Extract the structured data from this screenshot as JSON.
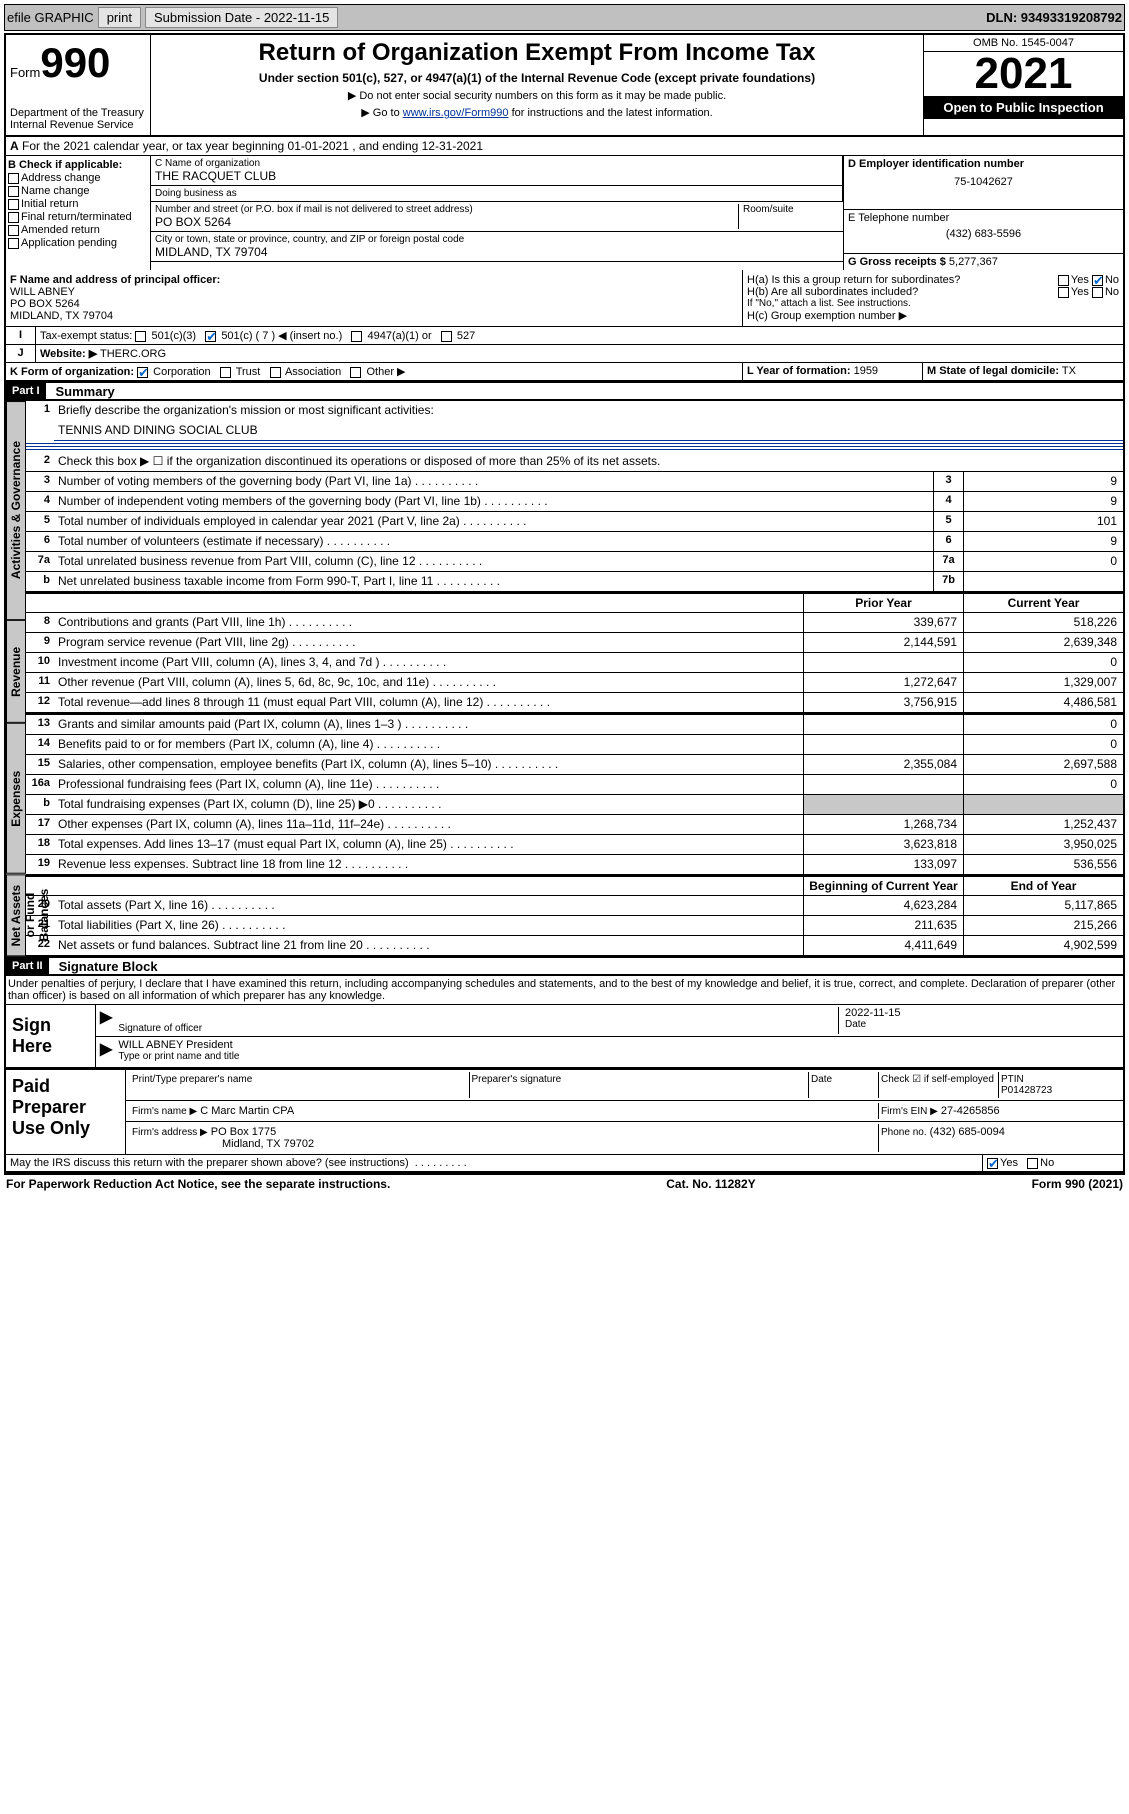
{
  "topbar": {
    "efile": "efile GRAPHIC",
    "print": "print",
    "subdate_label": "Submission Date - 2022-11-15",
    "dln": "DLN: 93493319208792"
  },
  "header": {
    "form": "Form",
    "formno": "990",
    "dept": "Department of the Treasury",
    "irs": "Internal Revenue Service",
    "title": "Return of Organization Exempt From Income Tax",
    "sub": "Under section 501(c), 527, or 4947(a)(1) of the Internal Revenue Code (except private foundations)",
    "warn": "▶ Do not enter social security numbers on this form as it may be made public.",
    "goto_pre": "▶ Go to ",
    "goto_link": "www.irs.gov/Form990",
    "goto_post": " for instructions and the latest information.",
    "omb": "OMB No. 1545-0047",
    "year": "2021",
    "open": "Open to Public Inspection"
  },
  "A": "For the 2021 calendar year, or tax year beginning 01-01-2021  , and ending 12-31-2021",
  "B": {
    "hdr": "B Check if applicable:",
    "items": [
      "Address change",
      "Name change",
      "Initial return",
      "Final return/terminated",
      "Amended return",
      "Application pending"
    ]
  },
  "C": {
    "name_label": "C Name of organization",
    "name": "THE RACQUET CLUB",
    "dba_label": "Doing business as",
    "dba": "",
    "addr_label": "Number and street (or P.O. box if mail is not delivered to street address)",
    "room_label": "Room/suite",
    "addr": "PO BOX 5264",
    "city_label": "City or town, state or province, country, and ZIP or foreign postal code",
    "city": "MIDLAND, TX  79704"
  },
  "D": {
    "label": "D Employer identification number",
    "val": "75-1042627"
  },
  "E": {
    "label": "E Telephone number",
    "val": "(432) 683-5596"
  },
  "G": {
    "label": "G Gross receipts $",
    "val": "5,277,367"
  },
  "F": {
    "label": "F  Name and address of principal officer:",
    "name": "WILL ABNEY",
    "addr": "PO BOX 5264",
    "city": "MIDLAND, TX  79704"
  },
  "H": {
    "a": "H(a)  Is this a group return for subordinates?",
    "b": "H(b)  Are all subordinates included?",
    "b_note": "If \"No,\" attach a list. See instructions.",
    "c": "H(c)  Group exemption number ▶",
    "yes": "Yes",
    "no": "No"
  },
  "I": {
    "label": "Tax-exempt status:",
    "opts": [
      "501(c)(3)",
      "501(c) ( 7 ) ◀ (insert no.)",
      "4947(a)(1) or",
      "527"
    ]
  },
  "J": {
    "label": "Website: ▶",
    "val": "THERC.ORG"
  },
  "K": {
    "label": "K Form of organization:",
    "opts": [
      "Corporation",
      "Trust",
      "Association",
      "Other ▶"
    ]
  },
  "L": {
    "label": "L Year of formation:",
    "val": "1959"
  },
  "M": {
    "label": "M State of legal domicile:",
    "val": "TX"
  },
  "part1": {
    "tag": "Part I",
    "title": "Summary",
    "l1": "Briefly describe the organization's mission or most significant activities:",
    "l1v": "TENNIS AND DINING SOCIAL CLUB",
    "l2": "Check this box ▶ ☐ if the organization discontinued its operations or disposed of more than 25% of its net assets.",
    "tabs": {
      "gov": "Activities & Governance",
      "rev": "Revenue",
      "exp": "Expenses",
      "net": "Net Assets or Fund Balances"
    },
    "prior": "Prior Year",
    "current": "Current Year",
    "begin": "Beginning of Current Year",
    "end": "End of Year",
    "lines_gov": [
      {
        "n": "3",
        "d": "Number of voting members of the governing body (Part VI, line 1a)",
        "box": "3",
        "v": "9"
      },
      {
        "n": "4",
        "d": "Number of independent voting members of the governing body (Part VI, line 1b)",
        "box": "4",
        "v": "9"
      },
      {
        "n": "5",
        "d": "Total number of individuals employed in calendar year 2021 (Part V, line 2a)",
        "box": "5",
        "v": "101"
      },
      {
        "n": "6",
        "d": "Total number of volunteers (estimate if necessary)",
        "box": "6",
        "v": "9"
      },
      {
        "n": "7a",
        "d": "Total unrelated business revenue from Part VIII, column (C), line 12",
        "box": "7a",
        "v": "0"
      },
      {
        "n": "b",
        "d": "Net unrelated business taxable income from Form 990-T, Part I, line 11",
        "box": "7b",
        "v": ""
      }
    ],
    "lines_rev": [
      {
        "n": "8",
        "d": "Contributions and grants (Part VIII, line 1h)",
        "p": "339,677",
        "c": "518,226"
      },
      {
        "n": "9",
        "d": "Program service revenue (Part VIII, line 2g)",
        "p": "2,144,591",
        "c": "2,639,348"
      },
      {
        "n": "10",
        "d": "Investment income (Part VIII, column (A), lines 3, 4, and 7d )",
        "p": "",
        "c": "0"
      },
      {
        "n": "11",
        "d": "Other revenue (Part VIII, column (A), lines 5, 6d, 8c, 9c, 10c, and 11e)",
        "p": "1,272,647",
        "c": "1,329,007"
      },
      {
        "n": "12",
        "d": "Total revenue—add lines 8 through 11 (must equal Part VIII, column (A), line 12)",
        "p": "3,756,915",
        "c": "4,486,581"
      }
    ],
    "lines_exp": [
      {
        "n": "13",
        "d": "Grants and similar amounts paid (Part IX, column (A), lines 1–3 )",
        "p": "",
        "c": "0"
      },
      {
        "n": "14",
        "d": "Benefits paid to or for members (Part IX, column (A), line 4)",
        "p": "",
        "c": "0"
      },
      {
        "n": "15",
        "d": "Salaries, other compensation, employee benefits (Part IX, column (A), lines 5–10)",
        "p": "2,355,084",
        "c": "2,697,588"
      },
      {
        "n": "16a",
        "d": "Professional fundraising fees (Part IX, column (A), line 11e)",
        "p": "",
        "c": "0"
      },
      {
        "n": "b",
        "d": "Total fundraising expenses (Part IX, column (D), line 25) ▶0",
        "p": "grey",
        "c": "grey"
      },
      {
        "n": "17",
        "d": "Other expenses (Part IX, column (A), lines 11a–11d, 11f–24e)",
        "p": "1,268,734",
        "c": "1,252,437"
      },
      {
        "n": "18",
        "d": "Total expenses. Add lines 13–17 (must equal Part IX, column (A), line 25)",
        "p": "3,623,818",
        "c": "3,950,025"
      },
      {
        "n": "19",
        "d": "Revenue less expenses. Subtract line 18 from line 12",
        "p": "133,097",
        "c": "536,556"
      }
    ],
    "lines_net": [
      {
        "n": "20",
        "d": "Total assets (Part X, line 16)",
        "p": "4,623,284",
        "c": "5,117,865"
      },
      {
        "n": "21",
        "d": "Total liabilities (Part X, line 26)",
        "p": "211,635",
        "c": "215,266"
      },
      {
        "n": "22",
        "d": "Net assets or fund balances. Subtract line 21 from line 20",
        "p": "4,411,649",
        "c": "4,902,599"
      }
    ]
  },
  "part2": {
    "tag": "Part II",
    "title": "Signature Block"
  },
  "decl": "Under penalties of perjury, I declare that I have examined this return, including accompanying schedules and statements, and to the best of my knowledge and belief, it is true, correct, and complete. Declaration of preparer (other than officer) is based on all information of which preparer has any knowledge.",
  "sign": {
    "label": "Sign Here",
    "sig": "Signature of officer",
    "date_l": "Date",
    "date_v": "2022-11-15",
    "name": "WILL ABNEY President",
    "type": "Type or print name and title"
  },
  "paid": {
    "label": "Paid Preparer Use Only",
    "hdr": [
      "Print/Type preparer's name",
      "Preparer's signature",
      "Date"
    ],
    "check": "Check ☑ if self-employed",
    "ptin_l": "PTIN",
    "ptin": "P01428723",
    "firm_l": "Firm's name   ▶",
    "firm": "C Marc Martin CPA",
    "ein_l": "Firm's EIN ▶",
    "ein": "27-4265856",
    "addr_l": "Firm's address ▶",
    "addr": "PO Box 1775",
    "addr2": "Midland, TX  79702",
    "phone_l": "Phone no.",
    "phone": "(432) 685-0094"
  },
  "discuss": "May the IRS discuss this return with the preparer shown above? (see instructions)",
  "footer": {
    "pra": "For Paperwork Reduction Act Notice, see the separate instructions.",
    "cat": "Cat. No. 11282Y",
    "form": "Form 990 (2021)"
  }
}
